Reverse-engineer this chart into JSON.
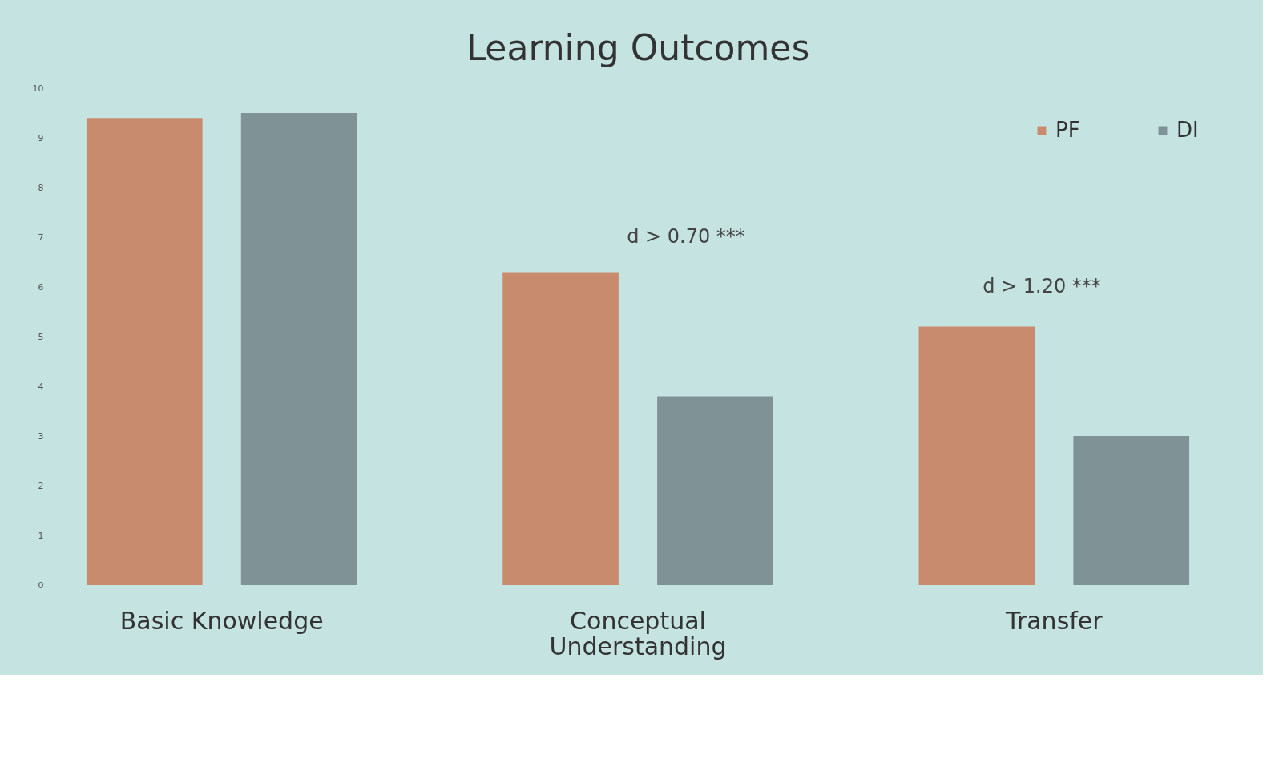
{
  "chart_data": {
    "type": "bar",
    "title": "Learning Outcomes",
    "categories": [
      "Basic Knowledge",
      "Conceptual Understanding",
      "Transfer"
    ],
    "series": [
      {
        "name": "PF",
        "color": "#c98b6e",
        "values": [
          9.4,
          6.3,
          5.2
        ]
      },
      {
        "name": "DI",
        "color": "#7f9296",
        "values": [
          9.5,
          3.8,
          3.0
        ]
      }
    ],
    "ylim": [
      0,
      10
    ],
    "yticks": [
      0,
      1,
      2,
      3,
      4,
      5,
      6,
      7,
      8,
      9,
      10
    ],
    "grid": false,
    "legend": "top right",
    "annotations": [
      "d > 0.70 ***",
      "d > 1.20 ***"
    ]
  }
}
